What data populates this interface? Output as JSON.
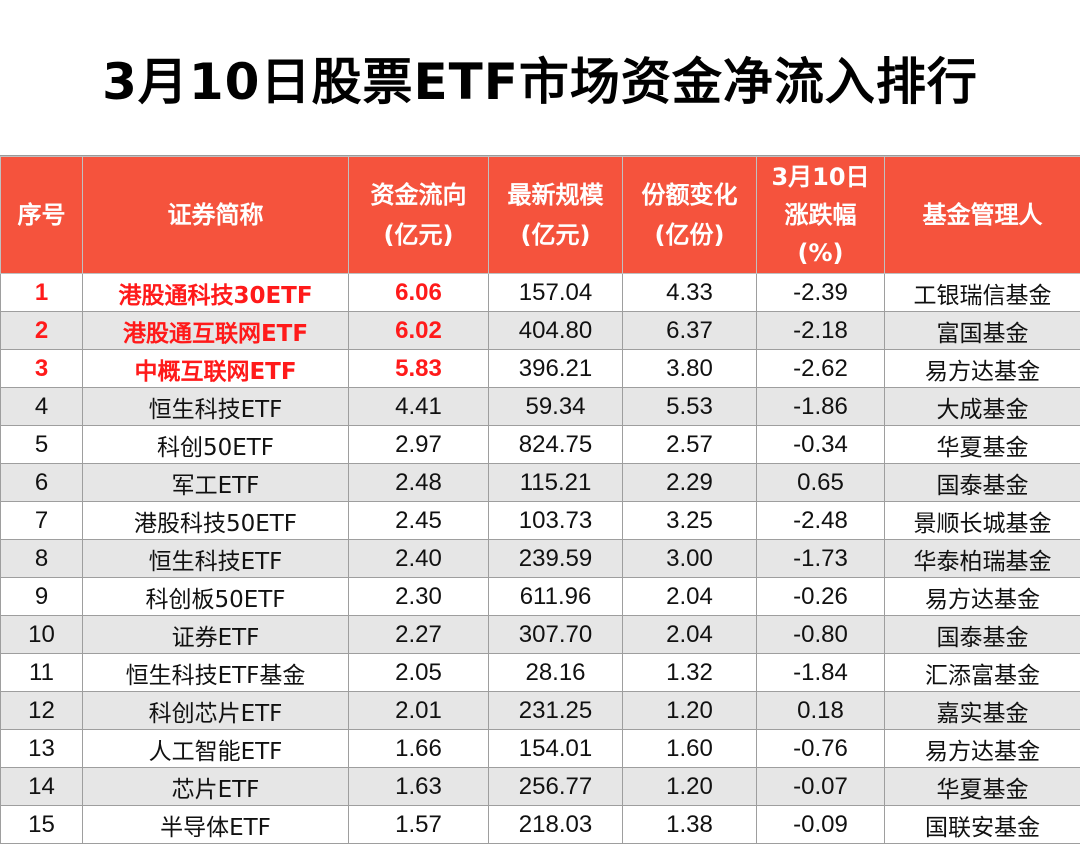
{
  "title": "3月10日股票ETF市场资金净流入排行",
  "headers": [
    [
      "序号"
    ],
    [
      "证券简称"
    ],
    [
      "资金流向",
      "(亿元)"
    ],
    [
      "最新规模",
      "(亿元)"
    ],
    [
      "份额变化",
      "(亿份)"
    ],
    [
      "3月10日",
      "涨跌幅",
      "(%)"
    ],
    [
      "基金管理人"
    ]
  ],
  "rows": [
    {
      "rank": "1",
      "name": "港股通科技30ETF",
      "flow": "6.06",
      "scale": "157.04",
      "share": "4.33",
      "change": "-2.39",
      "manager": "工银瑞信基金"
    },
    {
      "rank": "2",
      "name": "港股通互联网ETF",
      "flow": "6.02",
      "scale": "404.80",
      "share": "6.37",
      "change": "-2.18",
      "manager": "富国基金"
    },
    {
      "rank": "3",
      "name": "中概互联网ETF",
      "flow": "5.83",
      "scale": "396.21",
      "share": "3.80",
      "change": "-2.62",
      "manager": "易方达基金"
    },
    {
      "rank": "4",
      "name": "恒生科技ETF",
      "flow": "4.41",
      "scale": "59.34",
      "share": "5.53",
      "change": "-1.86",
      "manager": "大成基金"
    },
    {
      "rank": "5",
      "name": "科创50ETF",
      "flow": "2.97",
      "scale": "824.75",
      "share": "2.57",
      "change": "-0.34",
      "manager": "华夏基金"
    },
    {
      "rank": "6",
      "name": "军工ETF",
      "flow": "2.48",
      "scale": "115.21",
      "share": "2.29",
      "change": "0.65",
      "manager": "国泰基金"
    },
    {
      "rank": "7",
      "name": "港股科技50ETF",
      "flow": "2.45",
      "scale": "103.73",
      "share": "3.25",
      "change": "-2.48",
      "manager": "景顺长城基金"
    },
    {
      "rank": "8",
      "name": "恒生科技ETF",
      "flow": "2.40",
      "scale": "239.59",
      "share": "3.00",
      "change": "-1.73",
      "manager": "华泰柏瑞基金"
    },
    {
      "rank": "9",
      "name": "科创板50ETF",
      "flow": "2.30",
      "scale": "611.96",
      "share": "2.04",
      "change": "-0.26",
      "manager": "易方达基金"
    },
    {
      "rank": "10",
      "name": "证券ETF",
      "flow": "2.27",
      "scale": "307.70",
      "share": "2.04",
      "change": "-0.80",
      "manager": "国泰基金"
    },
    {
      "rank": "11",
      "name": "恒生科技ETF基金",
      "flow": "2.05",
      "scale": "28.16",
      "share": "1.32",
      "change": "-1.84",
      "manager": "汇添富基金"
    },
    {
      "rank": "12",
      "name": "科创芯片ETF",
      "flow": "2.01",
      "scale": "231.25",
      "share": "1.20",
      "change": "0.18",
      "manager": "嘉实基金"
    },
    {
      "rank": "13",
      "name": "人工智能ETF",
      "flow": "1.66",
      "scale": "154.01",
      "share": "1.60",
      "change": "-0.76",
      "manager": "易方达基金"
    },
    {
      "rank": "14",
      "name": "芯片ETF",
      "flow": "1.63",
      "scale": "256.77",
      "share": "1.20",
      "change": "-0.07",
      "manager": "华夏基金"
    },
    {
      "rank": "15",
      "name": "半导体ETF",
      "flow": "1.57",
      "scale": "218.03",
      "share": "1.38",
      "change": "-0.09",
      "manager": "国联安基金"
    }
  ],
  "colors": {
    "header_bg": "#f5533d",
    "header_text": "#ffffff",
    "highlight_text": "#ff1a1a",
    "stripe_bg": "#e6e6e6"
  }
}
